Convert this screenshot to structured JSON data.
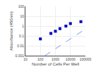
{
  "chart_data": {
    "type": "scatter",
    "xlabel": "Number of Cells Per Well",
    "ylabel": "Absorbance (450nm)",
    "series": [
      {
        "type": "line",
        "color": "#7799ee",
        "line_style": "dashed",
        "x": [
          199.52623149688796,
          100000
        ],
        "values": [
          0.001,
          0.501187233627272
        ]
      },
      {
        "type": "scatter",
        "color": "#0000bb",
        "marker": "square",
        "x": [
          100,
          500,
          1000,
          2000,
          5000,
          10000,
          50000
        ],
        "values": [
          0.05,
          0.18,
          0.3,
          0.55,
          1.0,
          1.8,
          2.8
        ]
      }
    ],
    "log": true,
    "xlim": [
      10,
      100000
    ],
    "ylim": [
      0.001,
      100
    ],
    "xticks": [
      10,
      100,
      1000,
      10000,
      100000
    ],
    "yticks": [
      0.001,
      0.01,
      0.1,
      1,
      10,
      100
    ],
    "grid": true
  }
}
